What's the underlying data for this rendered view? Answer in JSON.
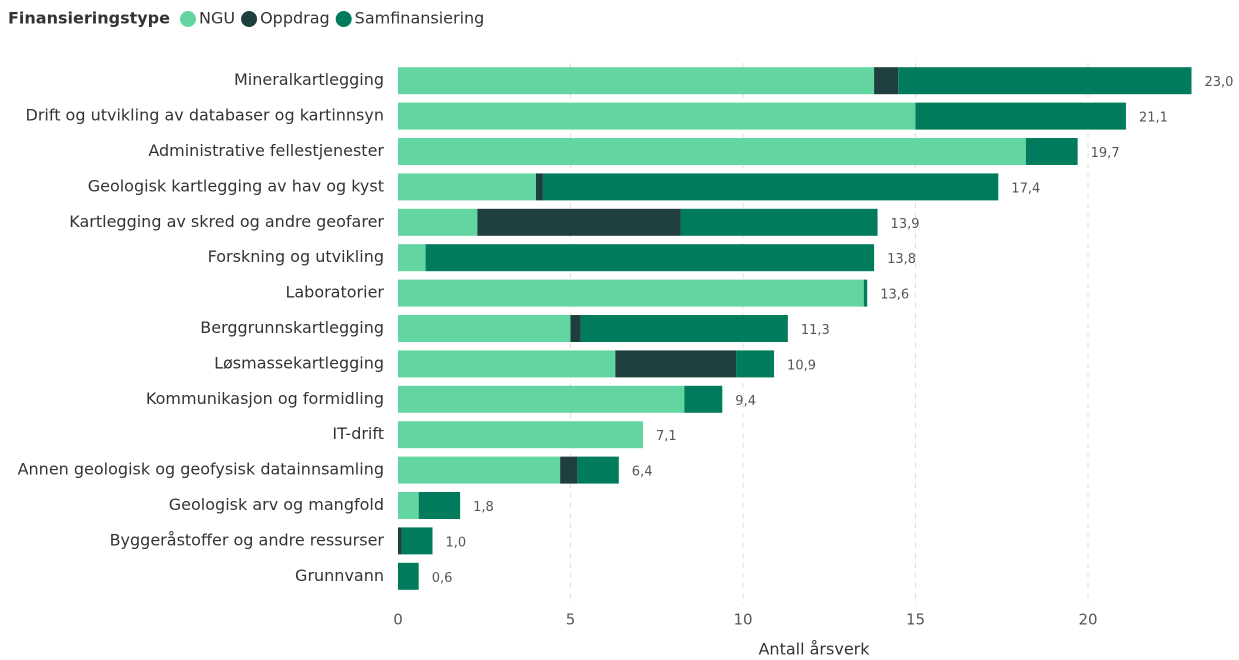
{
  "chart_data": {
    "type": "bar",
    "orientation": "horizontal",
    "stacked": true,
    "legend_title": "Finansieringstype",
    "x_label": "Antall årsverk",
    "categories": [
      "Mineralkartlegging",
      "Drift og utvikling av databaser og kartinnsyn",
      "Administrative fellestjenester",
      "Geologisk kartlegging av hav og kyst",
      "Kartlegging av skred og andre geofarer",
      "Forskning og utvikling",
      "Laboratorier",
      "Berggrunnskartlegging",
      "Løsmassekartlegging",
      "Kommunikasjon og formidling",
      "IT-drift",
      "Annen geologisk og geofysisk datainnsamling",
      "Geologisk arv og mangfold",
      "Byggeråstoffer og andre ressurser",
      "Grunnvann"
    ],
    "series": [
      {
        "name": "NGU",
        "color": "#63d5a0",
        "values": [
          13.8,
          15.0,
          18.2,
          4.0,
          2.3,
          0.8,
          13.5,
          5.0,
          6.3,
          8.3,
          7.1,
          4.7,
          0.6,
          0.0,
          0.0
        ]
      },
      {
        "name": "Oppdrag",
        "color": "#1f3f3e",
        "values": [
          0.7,
          0.0,
          0.0,
          0.2,
          5.9,
          0.0,
          0.0,
          0.3,
          3.5,
          0.0,
          0.0,
          0.5,
          0.0,
          0.1,
          0.0
        ]
      },
      {
        "name": "Samfinansiering",
        "color": "#007b5b",
        "values": [
          8.5,
          6.1,
          1.5,
          13.2,
          5.7,
          13.0,
          0.1,
          6.0,
          1.1,
          1.1,
          0.0,
          1.2,
          1.2,
          0.9,
          0.6
        ]
      }
    ],
    "totals": [
      23.0,
      21.1,
      19.7,
      17.4,
      13.9,
      13.8,
      13.6,
      11.3,
      10.9,
      9.4,
      7.1,
      6.4,
      1.8,
      1.0,
      0.6
    ],
    "total_labels": [
      "23,0",
      "21,1",
      "19,7",
      "17,4",
      "13,9",
      "13,8",
      "13,6",
      "11,3",
      "10,9",
      "9,4",
      "7,1",
      "6,4",
      "1,8",
      "1,0",
      "0,6"
    ],
    "xlim": [
      0,
      24
    ],
    "xticks": [
      0,
      5,
      10,
      15,
      20
    ],
    "grid": true
  }
}
